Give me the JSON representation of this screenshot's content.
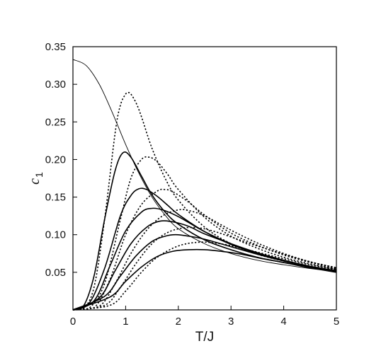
{
  "chart_data": {
    "type": "line",
    "title": "",
    "xlabel": "T/J",
    "ylabel": {
      "main": "c",
      "subscript": "1"
    },
    "xlim": [
      0,
      5
    ],
    "ylim": [
      0,
      0.35
    ],
    "xticks": [
      "0",
      "1",
      "2",
      "3",
      "4",
      "5"
    ],
    "xtick_values": [
      0,
      1,
      2,
      3,
      4,
      5
    ],
    "yticks": [
      "0.05",
      "0.10",
      "0.15",
      "0.20",
      "0.25",
      "0.30",
      "0.35"
    ],
    "ytick_values": [
      0.05,
      0.1,
      0.15,
      0.2,
      0.25,
      0.3,
      0.35
    ],
    "grid": false,
    "legend": "none",
    "line_color": "#000000",
    "series": [
      {
        "style": "thin",
        "x": [
          0,
          0.25,
          0.5,
          0.75,
          1.0,
          1.25,
          1.5,
          1.75,
          2.0,
          2.5,
          3.0,
          3.5,
          4.0,
          4.5,
          5.0
        ],
        "values": [
          0.333,
          0.325,
          0.3,
          0.262,
          0.22,
          0.182,
          0.15,
          0.126,
          0.108,
          0.088,
          0.075,
          0.066,
          0.06,
          0.055,
          0.051
        ]
      },
      {
        "style": "dotted",
        "x": [
          0,
          0.2,
          0.4,
          0.6,
          0.8,
          0.9,
          1.0,
          1.05,
          1.1,
          1.2,
          1.3,
          1.5,
          1.75,
          2.0,
          2.5,
          3.0,
          3.5,
          4.0,
          4.5,
          5.0
        ],
        "values": [
          0,
          0.002,
          0.03,
          0.12,
          0.235,
          0.272,
          0.287,
          0.289,
          0.287,
          0.275,
          0.257,
          0.215,
          0.175,
          0.146,
          0.11,
          0.088,
          0.074,
          0.065,
          0.058,
          0.053
        ]
      },
      {
        "style": "solid",
        "x": [
          0,
          0.2,
          0.4,
          0.6,
          0.8,
          0.95,
          1.1,
          1.3,
          1.5,
          1.75,
          2.0,
          2.5,
          3.0,
          3.5,
          4.0,
          4.5,
          5.0
        ],
        "values": [
          0,
          0.005,
          0.045,
          0.12,
          0.185,
          0.209,
          0.203,
          0.178,
          0.153,
          0.13,
          0.114,
          0.093,
          0.08,
          0.07,
          0.063,
          0.057,
          0.052
        ]
      },
      {
        "style": "dotted",
        "x": [
          0,
          0.3,
          0.6,
          0.9,
          1.1,
          1.3,
          1.45,
          1.6,
          1.8,
          2.0,
          2.5,
          3.0,
          3.5,
          4.0,
          4.5,
          5.0
        ],
        "values": [
          0,
          0.002,
          0.035,
          0.12,
          0.175,
          0.2,
          0.203,
          0.197,
          0.18,
          0.16,
          0.123,
          0.098,
          0.082,
          0.07,
          0.061,
          0.054
        ]
      },
      {
        "style": "solid",
        "x": [
          0,
          0.3,
          0.6,
          0.9,
          1.1,
          1.25,
          1.4,
          1.6,
          1.8,
          2.0,
          2.5,
          3.0,
          3.5,
          4.0,
          4.5,
          5.0
        ],
        "values": [
          0,
          0.008,
          0.055,
          0.125,
          0.152,
          0.161,
          0.16,
          0.151,
          0.139,
          0.127,
          0.104,
          0.087,
          0.075,
          0.066,
          0.058,
          0.052
        ]
      },
      {
        "style": "dotted",
        "x": [
          0,
          0.4,
          0.7,
          1.0,
          1.3,
          1.6,
          1.75,
          1.9,
          2.2,
          2.5,
          3.0,
          3.5,
          4.0,
          4.5,
          5.0
        ],
        "values": [
          0,
          0.003,
          0.04,
          0.1,
          0.14,
          0.158,
          0.16,
          0.157,
          0.143,
          0.126,
          0.102,
          0.086,
          0.073,
          0.063,
          0.055
        ]
      },
      {
        "style": "solid",
        "x": [
          0,
          0.4,
          0.7,
          1.0,
          1.3,
          1.5,
          1.7,
          2.0,
          2.5,
          3.0,
          3.5,
          4.0,
          4.5,
          5.0
        ],
        "values": [
          0,
          0.012,
          0.058,
          0.105,
          0.13,
          0.135,
          0.133,
          0.124,
          0.104,
          0.088,
          0.076,
          0.066,
          0.058,
          0.052
        ]
      },
      {
        "style": "dotted",
        "x": [
          0,
          0.5,
          0.8,
          1.1,
          1.4,
          1.7,
          2.0,
          2.2,
          2.5,
          3.0,
          3.5,
          4.0,
          4.5,
          5.0
        ],
        "values": [
          0,
          0.005,
          0.035,
          0.075,
          0.106,
          0.125,
          0.133,
          0.132,
          0.125,
          0.106,
          0.089,
          0.075,
          0.064,
          0.056
        ]
      },
      {
        "style": "solid",
        "x": [
          0,
          0.5,
          0.8,
          1.1,
          1.4,
          1.65,
          1.9,
          2.2,
          2.5,
          3.0,
          3.5,
          4.0,
          4.5,
          5.0
        ],
        "values": [
          0,
          0.016,
          0.052,
          0.088,
          0.11,
          0.118,
          0.117,
          0.111,
          0.101,
          0.088,
          0.076,
          0.066,
          0.058,
          0.052
        ]
      },
      {
        "style": "dotted",
        "x": [
          0,
          0.6,
          0.9,
          1.2,
          1.5,
          1.8,
          2.1,
          2.4,
          2.7,
          3.0,
          3.5,
          4.0,
          4.5,
          5.0
        ],
        "values": [
          0,
          0.006,
          0.03,
          0.062,
          0.088,
          0.103,
          0.109,
          0.109,
          0.104,
          0.097,
          0.085,
          0.074,
          0.064,
          0.056
        ]
      },
      {
        "style": "solid",
        "x": [
          0,
          0.6,
          0.9,
          1.2,
          1.5,
          1.75,
          1.95,
          2.2,
          2.5,
          3.0,
          3.5,
          4.0,
          4.5,
          5.0
        ],
        "values": [
          0,
          0.018,
          0.045,
          0.072,
          0.091,
          0.098,
          0.1,
          0.098,
          0.094,
          0.084,
          0.074,
          0.065,
          0.057,
          0.051
        ]
      },
      {
        "style": "dotted",
        "x": [
          0,
          0.7,
          1.0,
          1.3,
          1.6,
          2.0,
          2.4,
          2.8,
          3.2,
          3.6,
          4.0,
          4.5,
          5.0
        ],
        "values": [
          0,
          0.006,
          0.025,
          0.05,
          0.07,
          0.085,
          0.09,
          0.088,
          0.082,
          0.075,
          0.068,
          0.06,
          0.054
        ]
      },
      {
        "style": "solid",
        "x": [
          0,
          0.7,
          1.0,
          1.3,
          1.6,
          1.9,
          2.2,
          2.5,
          2.8,
          3.2,
          3.6,
          4.0,
          4.5,
          5.0
        ],
        "values": [
          0,
          0.017,
          0.038,
          0.057,
          0.071,
          0.078,
          0.08,
          0.08,
          0.078,
          0.074,
          0.068,
          0.063,
          0.056,
          0.05
        ]
      }
    ]
  }
}
